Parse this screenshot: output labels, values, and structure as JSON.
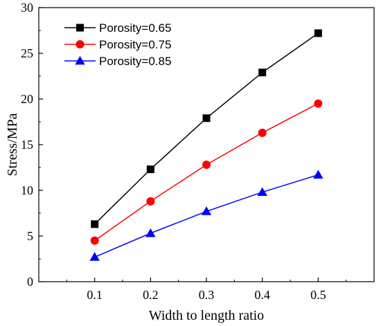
{
  "chart_data": {
    "type": "line",
    "title": "",
    "xlabel": "Width to length ratio",
    "ylabel": "Stress/MPa",
    "x": [
      0.1,
      0.2,
      0.3,
      0.4,
      0.5
    ],
    "xlim": [
      0.0,
      0.6
    ],
    "ylim": [
      0,
      30
    ],
    "xticks": [
      "0.1",
      "0.2",
      "0.3",
      "0.4",
      "0.5"
    ],
    "yticks": [
      "0",
      "5",
      "10",
      "15",
      "20",
      "25",
      "30"
    ],
    "grid": false,
    "legend_position": "top-left",
    "series": [
      {
        "name": "Porosity=0.65",
        "color": "#000000",
        "marker": "square",
        "values": [
          6.3,
          12.3,
          17.9,
          22.9,
          27.2
        ]
      },
      {
        "name": "Porosity=0.75",
        "color": "#ff0000",
        "marker": "circle",
        "values": [
          4.5,
          8.8,
          12.8,
          16.3,
          19.5
        ]
      },
      {
        "name": "Porosity=0.85",
        "color": "#0000ff",
        "marker": "triangle",
        "values": [
          2.7,
          5.3,
          7.7,
          9.8,
          11.7
        ]
      }
    ]
  }
}
